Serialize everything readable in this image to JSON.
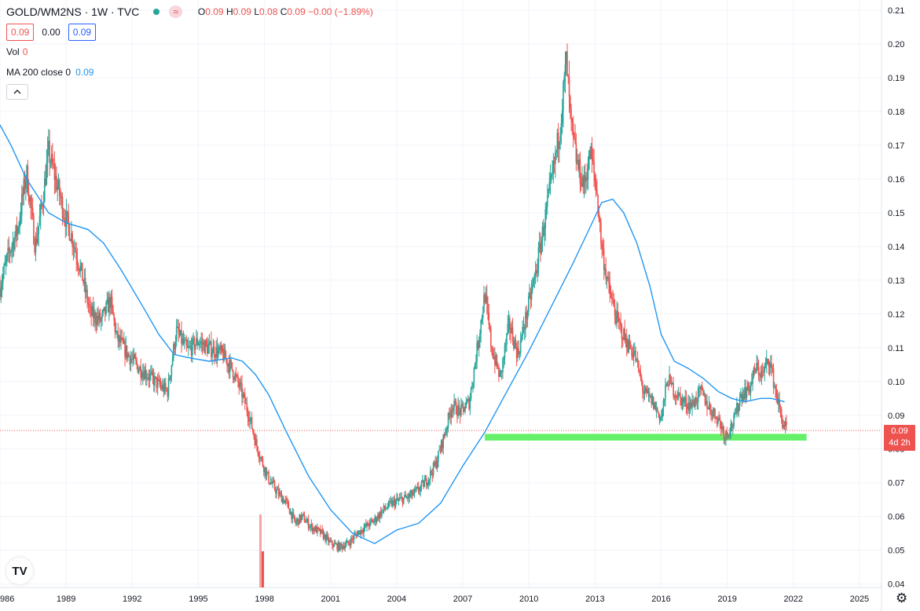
{
  "header": {
    "symbol": "GOLD/WM2NS · 1W · TVC",
    "ohlc_o": "0.09",
    "ohlc_h": "0.09",
    "ohlc_l": "0.08",
    "ohlc_c": "0.09",
    "change": "−0.00 (−1.89%)",
    "bid": "0.09",
    "spread": "0.00",
    "ask": "0.09"
  },
  "indicators": {
    "vol_label": "Vol",
    "vol_value": "0",
    "ma_label": "MA 200 close 0",
    "ma_value": "0.09",
    "collapse_icon": "chevron-up-icon"
  },
  "price_label": {
    "value": "0.09",
    "countdown": "4d 2h"
  },
  "logo_text": "TV",
  "colors": {
    "up": "#26a69a",
    "down": "#ef5350",
    "ma": "#2196f3",
    "zone": "#66f06a",
    "grid": "#f0f3fa"
  },
  "chart_data": {
    "type": "line",
    "title": "GOLD/WM2NS",
    "interval": "1W",
    "xlabel": "",
    "ylabel": "",
    "x_tick_labels": [
      "986",
      "1989",
      "1992",
      "1995",
      "1998",
      "2001",
      "2004",
      "2007",
      "2010",
      "2013",
      "2016",
      "2019",
      "2022",
      "2025"
    ],
    "y_tick_labels": [
      "0.21",
      "0.20",
      "0.19",
      "0.18",
      "0.17",
      "0.16",
      "0.15",
      "0.14",
      "0.13",
      "0.12",
      "0.11",
      "0.10",
      "0.09",
      "0.08",
      "0.07",
      "0.06",
      "0.05",
      "0.04"
    ],
    "xlim": [
      1986.0,
      2026.0
    ],
    "ylim": [
      0.039,
      0.213
    ],
    "grid": true,
    "series": [
      {
        "name": "GOLD/WM2NS",
        "x": [
          1986.0,
          1986.4,
          1986.8,
          1987.2,
          1987.6,
          1987.9,
          1988.2,
          1988.6,
          1988.9,
          1989.3,
          1989.7,
          1990.1,
          1990.6,
          1991.0,
          1991.3,
          1991.8,
          1992.3,
          1992.7,
          1993.2,
          1993.6,
          1994.0,
          1994.5,
          1995.0,
          1995.4,
          1995.8,
          1996.1,
          1996.5,
          1996.9,
          1997.3,
          1997.6,
          1997.9,
          1998.2,
          1998.6,
          1999.0,
          1999.4,
          1999.7,
          2000.1,
          2000.6,
          2001.0,
          2001.4,
          2001.8,
          2002.2,
          2002.6,
          2003.0,
          2003.4,
          2003.8,
          2004.2,
          2004.6,
          2005.0,
          2005.4,
          2005.8,
          2006.2,
          2006.5,
          2006.9,
          2007.3,
          2007.7,
          2008.0,
          2008.3,
          2008.7,
          2009.1,
          2009.5,
          2009.9,
          2010.3,
          2010.7,
          2011.1,
          2011.4,
          2011.7,
          2011.9,
          2012.2,
          2012.5,
          2012.8,
          2013.1,
          2013.3,
          2013.6,
          2014.0,
          2014.4,
          2014.8,
          2015.2,
          2015.6,
          2016.0,
          2016.3,
          2016.6,
          2017.0,
          2017.4,
          2017.8,
          2018.2,
          2018.6,
          2018.9,
          2019.3,
          2019.6,
          2020.0,
          2020.3,
          2020.6,
          2020.9,
          2021.2,
          2021.5,
          2021.7
        ],
        "values": [
          0.128,
          0.138,
          0.145,
          0.162,
          0.14,
          0.152,
          0.168,
          0.158,
          0.15,
          0.142,
          0.132,
          0.12,
          0.118,
          0.124,
          0.113,
          0.108,
          0.104,
          0.102,
          0.099,
          0.097,
          0.115,
          0.109,
          0.112,
          0.11,
          0.109,
          0.108,
          0.104,
          0.098,
          0.09,
          0.082,
          0.076,
          0.071,
          0.067,
          0.064,
          0.058,
          0.06,
          0.057,
          0.055,
          0.052,
          0.051,
          0.052,
          0.055,
          0.057,
          0.059,
          0.062,
          0.064,
          0.065,
          0.066,
          0.068,
          0.071,
          0.076,
          0.085,
          0.093,
          0.091,
          0.094,
          0.112,
          0.126,
          0.11,
          0.101,
          0.117,
          0.108,
          0.12,
          0.132,
          0.147,
          0.162,
          0.175,
          0.195,
          0.176,
          0.164,
          0.158,
          0.168,
          0.155,
          0.14,
          0.128,
          0.118,
          0.112,
          0.108,
          0.097,
          0.094,
          0.089,
          0.101,
          0.097,
          0.094,
          0.093,
          0.097,
          0.092,
          0.089,
          0.084,
          0.088,
          0.096,
          0.098,
          0.104,
          0.102,
          0.107,
          0.097,
          0.088,
          0.086
        ]
      },
      {
        "name": "MA 200 close",
        "x": [
          1986.0,
          1986.5,
          1987.2,
          1988.2,
          1989.0,
          1990.0,
          1990.7,
          1991.5,
          1992.5,
          1993.2,
          1993.9,
          1994.6,
          1995.5,
          1996.5,
          1997.0,
          1997.6,
          1998.2,
          1999.0,
          2000.0,
          2001.0,
          2002.0,
          2003.0,
          2004.0,
          2005.0,
          2006.0,
          2007.0,
          2008.0,
          2009.0,
          2010.0,
          2011.0,
          2012.0,
          2012.8,
          2013.3,
          2013.8,
          2014.3,
          2014.9,
          2015.5,
          2016.0,
          2016.6,
          2017.2,
          2017.9,
          2018.6,
          2019.2,
          2019.8,
          2020.5,
          2021.0,
          2021.6
        ],
        "values": [
          0.176,
          0.17,
          0.16,
          0.15,
          0.147,
          0.145,
          0.141,
          0.133,
          0.122,
          0.114,
          0.108,
          0.107,
          0.106,
          0.107,
          0.106,
          0.102,
          0.096,
          0.085,
          0.072,
          0.062,
          0.055,
          0.052,
          0.056,
          0.058,
          0.064,
          0.075,
          0.085,
          0.097,
          0.109,
          0.122,
          0.135,
          0.146,
          0.153,
          0.154,
          0.15,
          0.141,
          0.128,
          0.114,
          0.106,
          0.104,
          0.101,
          0.097,
          0.095,
          0.094,
          0.095,
          0.095,
          0.094
        ]
      }
    ],
    "support_zone": {
      "x0": 2008.0,
      "x1": 2022.6,
      "y0": 0.0825,
      "y1": 0.0845
    },
    "current_price": 0.0855
  }
}
